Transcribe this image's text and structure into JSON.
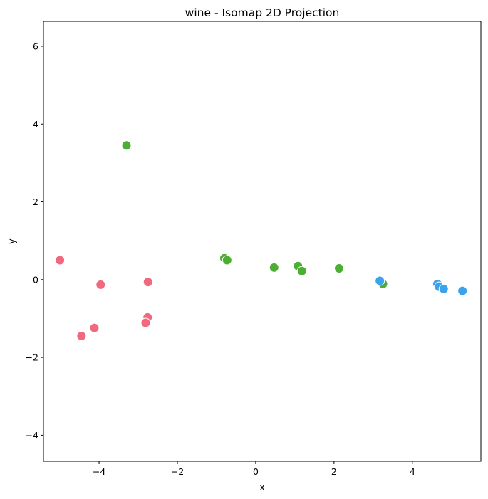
{
  "chart_data": {
    "type": "scatter",
    "title": "wine - Isomap 2D Projection",
    "xlabel": "x",
    "ylabel": "y",
    "xlim": [
      -5.42,
      5.75
    ],
    "ylim": [
      -4.67,
      6.64
    ],
    "xticks": [
      -4,
      -2,
      0,
      2,
      4
    ],
    "yticks": [
      -4,
      -2,
      0,
      2,
      4,
      6
    ],
    "grid": false,
    "legend": "none",
    "series": [
      {
        "color": "#f2687e",
        "points": [
          {
            "x": -5.0,
            "y": 0.5
          },
          {
            "x": -3.96,
            "y": -0.13
          },
          {
            "x": -2.75,
            "y": -0.06
          },
          {
            "x": -2.76,
            "y": -0.97
          },
          {
            "x": -2.81,
            "y": -1.11
          },
          {
            "x": -4.12,
            "y": -1.24
          },
          {
            "x": -4.45,
            "y": -1.45
          }
        ]
      },
      {
        "color": "#4cae32",
        "points": [
          {
            "x": -3.3,
            "y": 3.45
          },
          {
            "x": -0.8,
            "y": 0.55
          },
          {
            "x": -0.73,
            "y": 0.5
          },
          {
            "x": 0.47,
            "y": 0.31
          },
          {
            "x": 1.08,
            "y": 0.35
          },
          {
            "x": 1.18,
            "y": 0.22
          },
          {
            "x": 2.13,
            "y": 0.29
          },
          {
            "x": 3.25,
            "y": -0.11
          }
        ]
      },
      {
        "color": "#3ba3ec",
        "points": [
          {
            "x": 3.17,
            "y": -0.03
          },
          {
            "x": 4.64,
            "y": -0.11
          },
          {
            "x": 4.68,
            "y": -0.18
          },
          {
            "x": 4.8,
            "y": -0.24
          },
          {
            "x": 5.28,
            "y": -0.29
          }
        ]
      }
    ]
  }
}
